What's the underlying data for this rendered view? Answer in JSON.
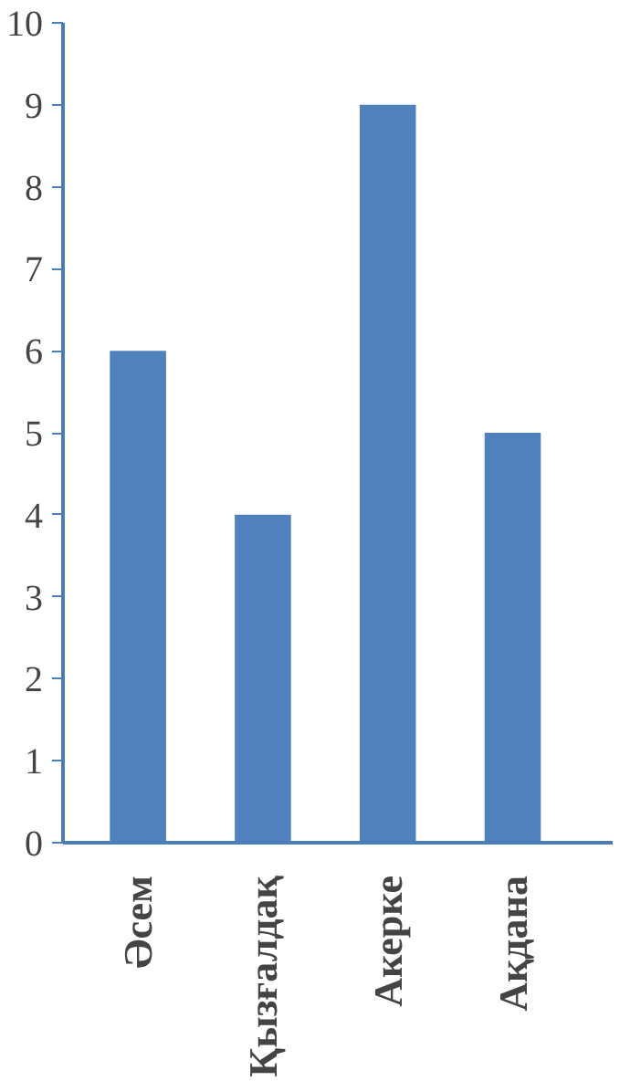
{
  "chart_data": {
    "type": "bar",
    "categories": [
      "Әсем",
      "Қызғалдақ",
      "Акерке",
      "Ақдана"
    ],
    "values": [
      6,
      4,
      9,
      5
    ],
    "color": "#4f81bd",
    "ylim": [
      0,
      10
    ],
    "yticks": [
      0,
      1,
      2,
      3,
      4,
      5,
      6,
      7,
      8,
      9,
      10
    ],
    "grid": false
  }
}
